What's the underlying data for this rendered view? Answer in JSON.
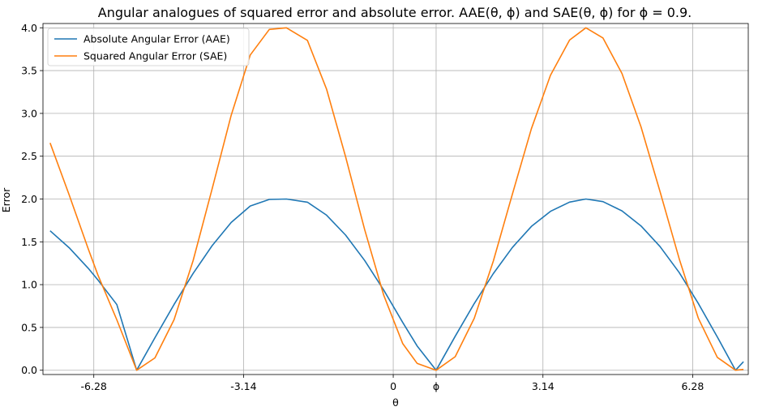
{
  "chart_data": {
    "type": "line",
    "title": "Angular analogues of squared error and absolute error. AAE(θ, ϕ) and SAE(θ, ϕ) for ϕ = 0.9.",
    "xlabel": "θ",
    "ylabel": "Error",
    "phi": 0.9,
    "xlim": [
      -7.35,
      7.45
    ],
    "ylim": [
      -0.05,
      4.05
    ],
    "x_ticks": [
      {
        "value": -6.2832,
        "label": "-6.28"
      },
      {
        "value": -3.1416,
        "label": "-3.14"
      },
      {
        "value": 0,
        "label": "0"
      },
      {
        "value": 0.9,
        "label": "ϕ"
      },
      {
        "value": 3.1416,
        "label": "3.14"
      },
      {
        "value": 6.2832,
        "label": "6.28"
      }
    ],
    "y_ticks": [
      {
        "value": 0.0,
        "label": "0.0"
      },
      {
        "value": 0.5,
        "label": "0.5"
      },
      {
        "value": 1.0,
        "label": "1.0"
      },
      {
        "value": 1.5,
        "label": "1.5"
      },
      {
        "value": 2.0,
        "label": "2.0"
      },
      {
        "value": 2.5,
        "label": "2.5"
      },
      {
        "value": 3.0,
        "label": "3.0"
      },
      {
        "value": 3.5,
        "label": "3.5"
      },
      {
        "value": 4.0,
        "label": "4.0"
      }
    ],
    "grid": true,
    "legend_position": "top-left",
    "series": [
      {
        "name": "Absolute Angular Error (AAE)",
        "color": "#1f77b4",
        "x": [
          -7.2,
          -6.8,
          -6.4,
          -6.2,
          -5.8,
          -5.383,
          -5.0,
          -4.6,
          -4.2,
          -3.8,
          -3.4,
          -3.0,
          -2.6,
          -2.242,
          -1.8,
          -1.4,
          -1.0,
          -0.6,
          -0.2,
          0.2,
          0.5,
          0.9,
          1.3,
          1.7,
          2.1,
          2.5,
          2.9,
          3.3,
          3.7,
          4.042,
          4.4,
          4.8,
          5.2,
          5.6,
          6.0,
          6.4,
          6.8,
          7.183,
          7.35
        ],
        "y": [
          1.629,
          1.431,
          1.191,
          1.057,
          0.767,
          0.0,
          0.38,
          0.768,
          1.131,
          1.456,
          1.726,
          1.919,
          1.995,
          2.0,
          1.963,
          1.812,
          1.579,
          1.282,
          0.937,
          0.558,
          0.284,
          0.0,
          0.397,
          0.779,
          1.129,
          1.434,
          1.68,
          1.856,
          1.964,
          2.0,
          1.97,
          1.862,
          1.686,
          1.444,
          1.141,
          0.781,
          0.389,
          0.0,
          0.1
        ]
      },
      {
        "name": "Squared Angular Error (SAE)",
        "color": "#ff7f0e",
        "x": [
          -7.2,
          -6.8,
          -6.4,
          -6.2,
          -5.8,
          -5.383,
          -5.0,
          -4.6,
          -4.2,
          -3.8,
          -3.4,
          -3.0,
          -2.6,
          -2.242,
          -1.8,
          -1.4,
          -1.0,
          -0.6,
          -0.2,
          0.2,
          0.5,
          0.9,
          1.3,
          1.7,
          2.1,
          2.5,
          2.9,
          3.3,
          3.7,
          4.042,
          4.4,
          4.8,
          5.2,
          5.6,
          6.0,
          6.4,
          6.8,
          7.183,
          7.35
        ],
        "y": [
          2.655,
          2.048,
          1.419,
          1.117,
          0.589,
          0.0,
          0.144,
          0.59,
          1.28,
          2.12,
          2.979,
          3.683,
          3.981,
          4.0,
          3.853,
          3.284,
          2.493,
          1.643,
          0.877,
          0.311,
          0.081,
          0.0,
          0.158,
          0.607,
          1.275,
          2.056,
          2.822,
          3.445,
          3.857,
          4.0,
          3.881,
          3.467,
          2.843,
          2.085,
          1.302,
          0.61,
          0.151,
          0.0,
          0.01
        ]
      }
    ]
  }
}
